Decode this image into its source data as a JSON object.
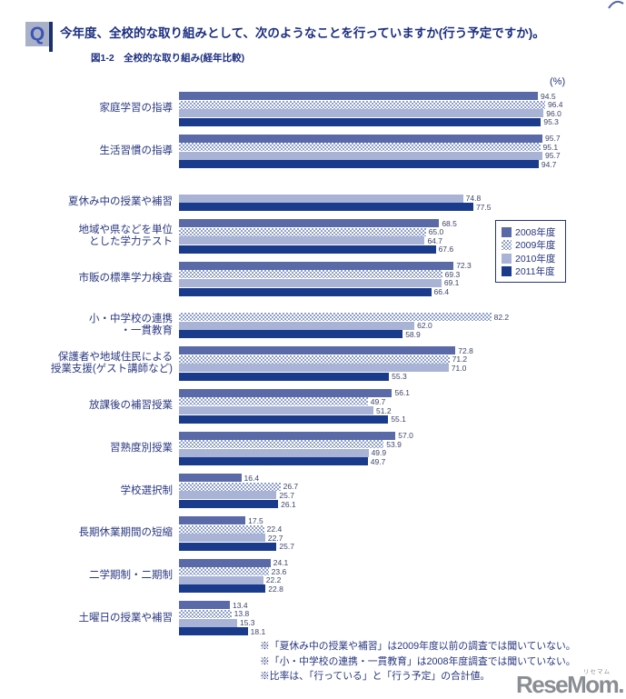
{
  "header": {
    "q_label": "Q",
    "question": "今年度、全校的な取り組みとして、次のようなことを行っていますか(行う予定ですか)。",
    "figure_caption": "図1-2　全校的な取り組み(経年比較)"
  },
  "chart_data": {
    "type": "bar",
    "orientation": "horizontal",
    "title": "全校的な取り組み(経年比較)",
    "unit_label": "(%)",
    "xlim": [
      0,
      100
    ],
    "grid": false,
    "legend_position": "right-middle",
    "series": [
      {
        "key": "2008",
        "name": "2008年度",
        "style": "solid",
        "color": "#5a6aa8"
      },
      {
        "key": "2009",
        "name": "2009年度",
        "style": "checker",
        "color": "#8fa0c8",
        "color2": "#ffffff"
      },
      {
        "key": "2010",
        "name": "2010年度",
        "style": "solid",
        "color": "#a9b3d6"
      },
      {
        "key": "2011",
        "name": "2011年度",
        "style": "solid",
        "color": "#1a3a8c"
      }
    ],
    "categories": [
      {
        "label": [
          "家庭学習の指導"
        ],
        "values": [
          94.5,
          96.4,
          96.0,
          95.3
        ]
      },
      {
        "label": [
          "生活習慣の指導"
        ],
        "values": [
          95.7,
          95.1,
          95.7,
          94.7
        ]
      },
      {
        "label": [
          "夏休み中の授業や補習"
        ],
        "values": [
          null,
          null,
          74.8,
          77.5
        ]
      },
      {
        "label": [
          "地域や県などを単位",
          "とした学力テスト"
        ],
        "values": [
          68.5,
          65.0,
          64.7,
          67.6
        ]
      },
      {
        "label": [
          "市販の標準学力検査"
        ],
        "values": [
          72.3,
          69.3,
          69.1,
          66.4
        ]
      },
      {
        "label": [
          "小・中学校の連携",
          "・一貫教育"
        ],
        "values": [
          null,
          82.2,
          62.0,
          58.9
        ]
      },
      {
        "label": [
          "保護者や地域住民による",
          "授業支援(ゲスト講師など)"
        ],
        "values": [
          72.8,
          71.2,
          71.0,
          55.3
        ]
      },
      {
        "label": [
          "放課後の補習授業"
        ],
        "values": [
          56.1,
          49.7,
          51.2,
          55.1
        ]
      },
      {
        "label": [
          "習熟度別授業"
        ],
        "values": [
          57.0,
          53.9,
          49.9,
          49.7
        ]
      },
      {
        "label": [
          "学校選択制"
        ],
        "values": [
          16.4,
          26.7,
          25.7,
          26.1
        ]
      },
      {
        "label": [
          "長期休業期間の短縮"
        ],
        "values": [
          17.5,
          22.4,
          22.7,
          25.7
        ]
      },
      {
        "label": [
          "二学期制・二期制"
        ],
        "values": [
          24.1,
          23.6,
          22.2,
          22.8
        ]
      },
      {
        "label": [
          "土曜日の授業や補習"
        ],
        "values": [
          13.4,
          13.8,
          15.3,
          18.1
        ]
      }
    ]
  },
  "footnotes": [
    "※「夏休み中の授業や補習」は2009年度以前の調査では聞いていない。",
    "※「小・中学校の連携・一貫教育」は2008年度調査では聞いていない。",
    "※比率は、「行っている」と「行う予定」の合計値。"
  ],
  "logo": {
    "text": "ReseMom.",
    "ruby": "リセマム"
  }
}
